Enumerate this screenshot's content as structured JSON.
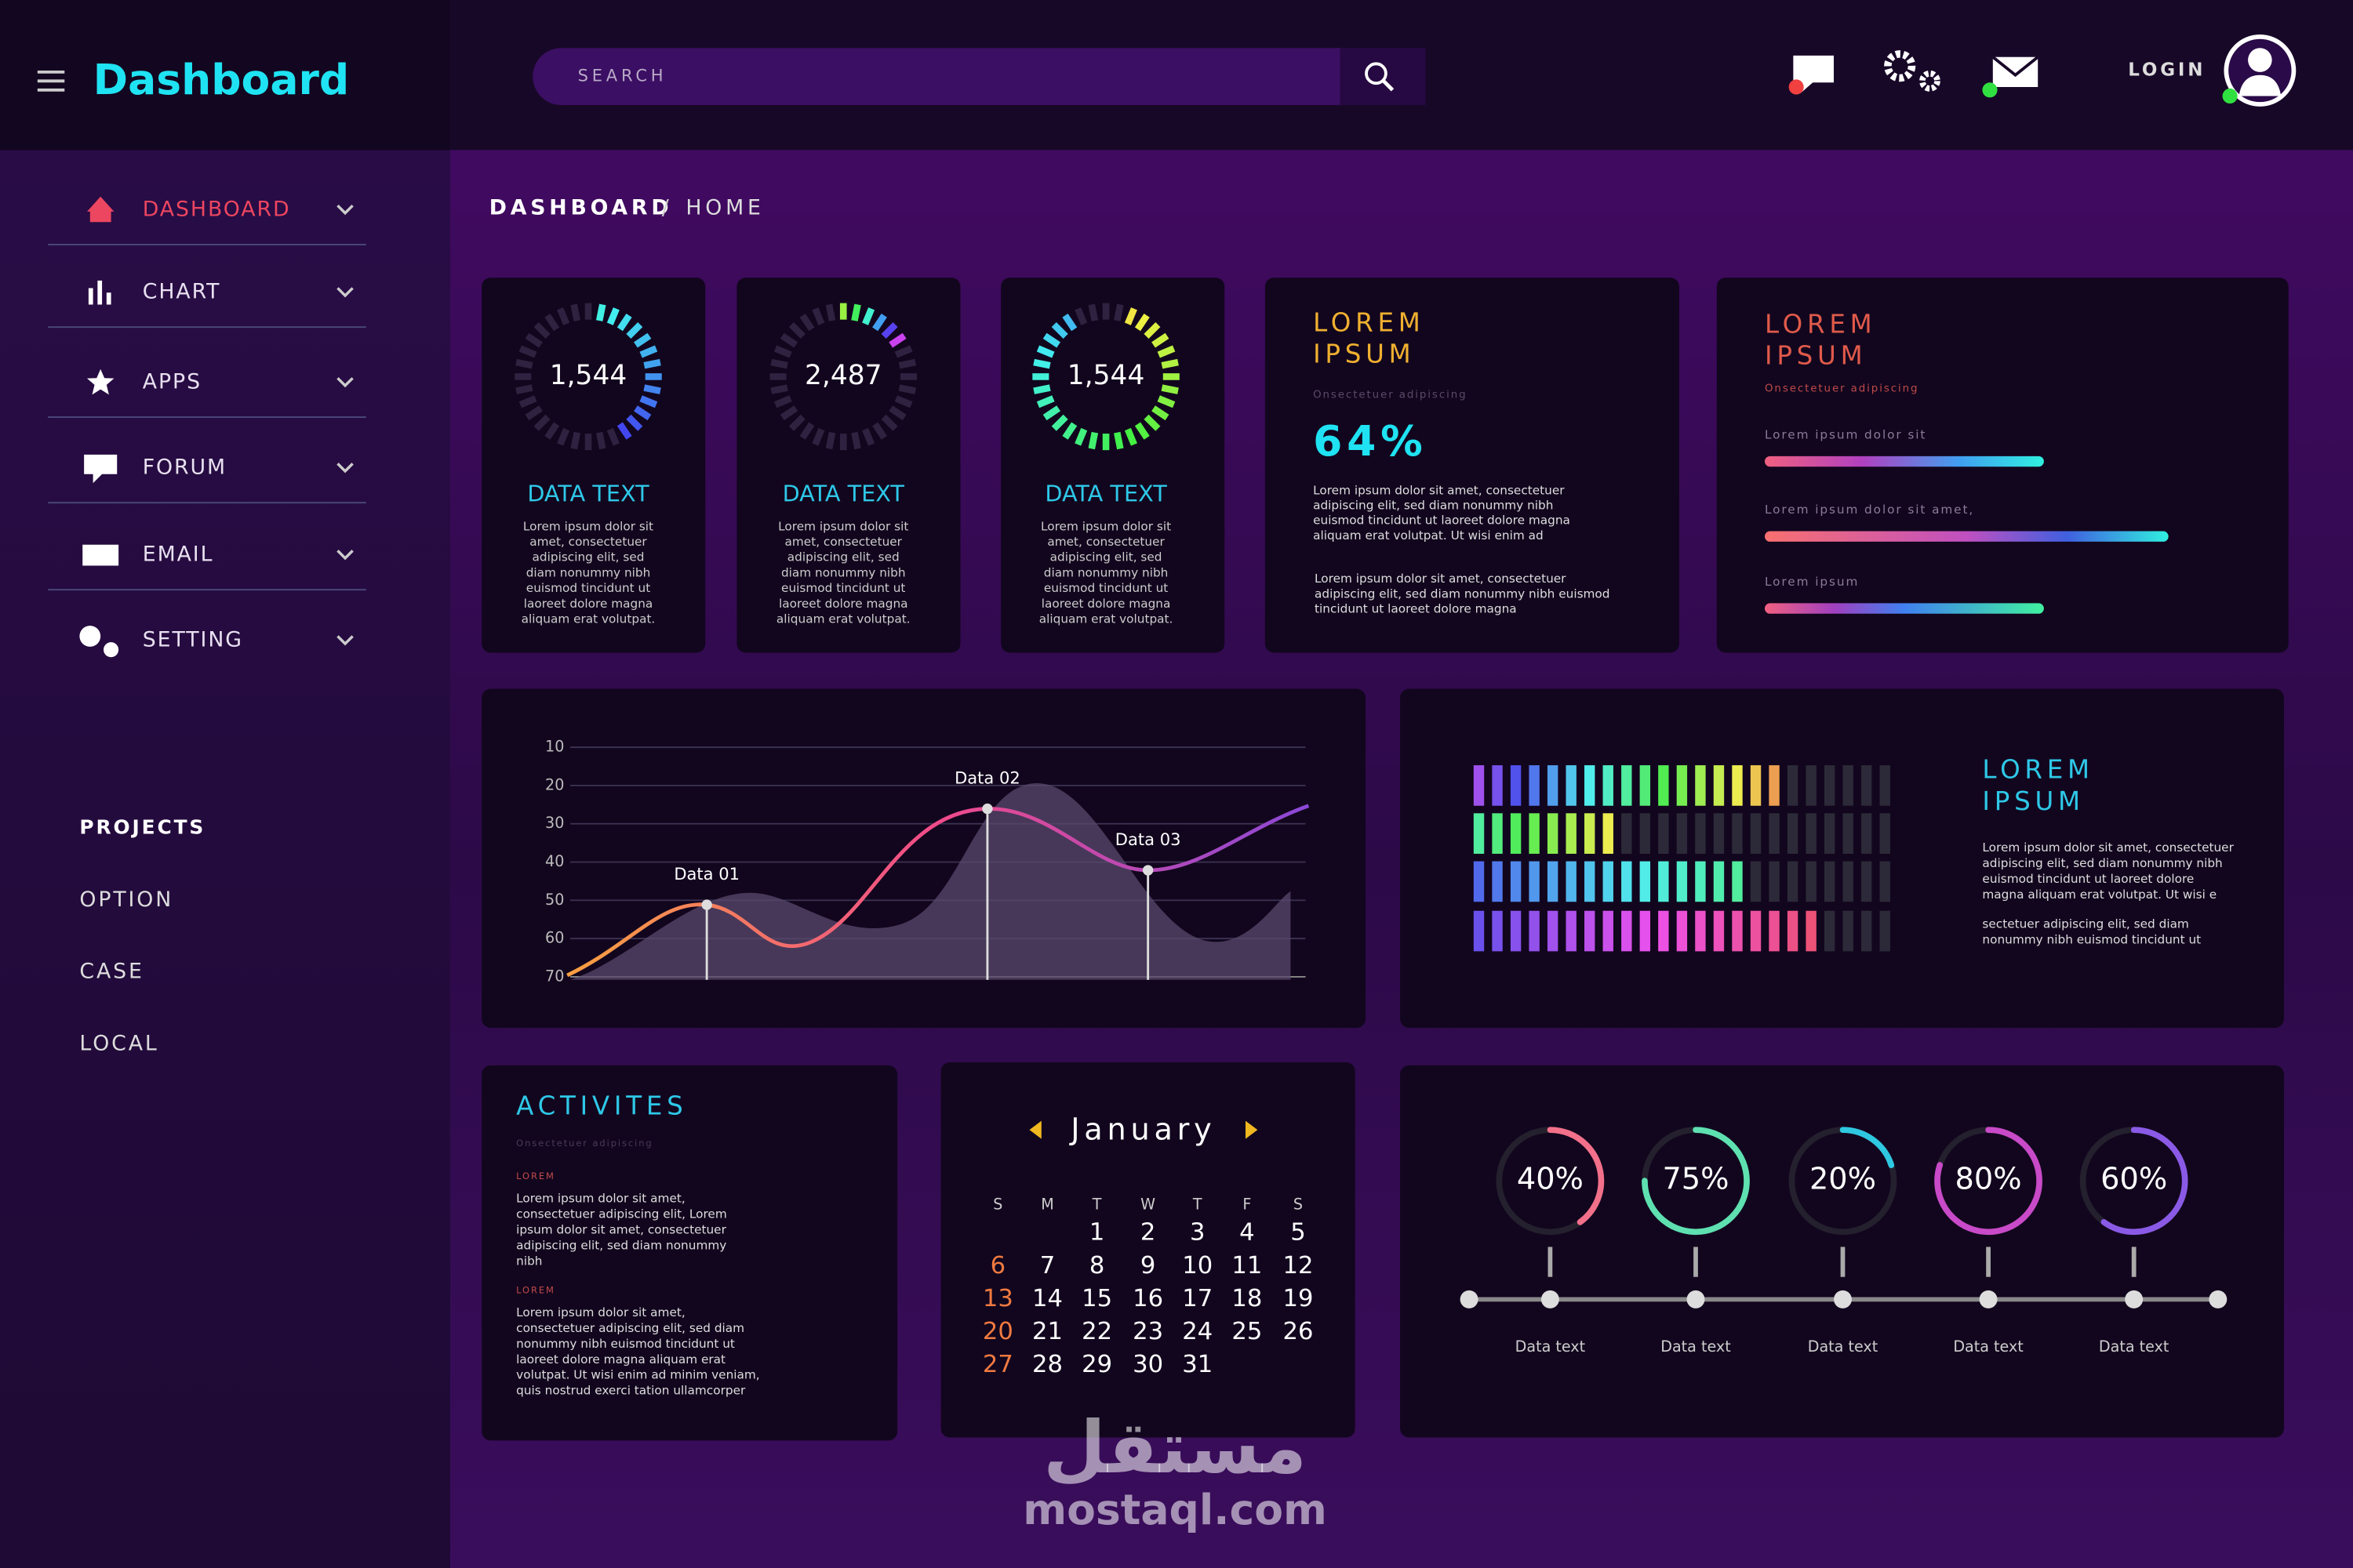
{
  "header": {
    "title": "Dashboard",
    "search_placeholder": "SEARCH",
    "login": "LOGIN"
  },
  "sidebar": {
    "menu": [
      "DASHBOARD",
      "CHART",
      "APPS",
      "FORUM",
      "EMAIL",
      "SETTING"
    ],
    "projects_title": "PROJECTS",
    "projects": [
      "OPTION",
      "CASE",
      "LOCAL"
    ]
  },
  "breadcrumb": {
    "section": "DASHBOARD",
    "separator": "/",
    "page": "HOME"
  },
  "stat_cards": [
    {
      "value": "1,544",
      "label": "DATA TEXT",
      "lines": [
        "Lorem ipsum dolor sit",
        "amet, consectetuer",
        "adipiscing elit, sed",
        "diam nonummy nibh",
        "euismod tincidunt ut",
        "laoreet dolore magna",
        "aliquam erat volutpat."
      ]
    },
    {
      "value": "2,487",
      "label": "DATA TEXT",
      "lines": [
        "Lorem ipsum dolor sit",
        "amet, consectetuer",
        "adipiscing elit, sed",
        "diam nonummy nibh",
        "euismod tincidunt ut",
        "laoreet dolore magna",
        "aliquam erat volutpat."
      ]
    },
    {
      "value": "1,544",
      "label": "DATA TEXT",
      "lines": [
        "Lorem ipsum dolor sit",
        "amet, consectetuer",
        "adipiscing elit, sed",
        "diam nonummy nibh",
        "euismod tincidunt ut",
        "laoreet dolore magna",
        "aliquam erat volutpat."
      ]
    }
  ],
  "percent_card": {
    "title": [
      "LOREM",
      "IPSUM"
    ],
    "subtitle": "Onsectetuer adipiscing",
    "value": "64%",
    "paragraph_1": [
      "Lorem ipsum dolor sit amet, consectetuer",
      "adipiscing elit, sed diam nonummy nibh",
      "euismod tincidunt ut laoreet dolore magna",
      "aliquam erat volutpat. Ut wisi enim ad"
    ],
    "paragraph_2": [
      "Lorem ipsum dolor sit amet, consectetuer",
      "adipiscing elit, sed diam nonummy nibh euismod",
      "tincidunt ut laoreet dolore magna"
    ]
  },
  "bars_card": {
    "title": [
      "LOREM",
      "IPSUM"
    ],
    "subtitle": "Onsectetuer adipiscing",
    "bar_labels": [
      "Lorem ipsum dolor sit",
      "Lorem ipsum dolor sit amet,",
      "Lorem ipsum"
    ]
  },
  "line_chart": {
    "yticks": [
      10,
      20,
      30,
      40,
      50,
      60,
      70
    ],
    "annotations": [
      "Data 01",
      "Data 02",
      "Data 03"
    ]
  },
  "levels_card": {
    "levels": [
      17,
      8,
      15,
      19
    ],
    "title": [
      "LOREM",
      "IPSUM"
    ],
    "paragraph_1": [
      "Lorem ipsum dolor sit amet, consectetuer",
      "adipiscing elit, sed diam nonummy nibh",
      "euismod tincidunt ut laoreet dolore",
      "magna aliquam erat volutpat. Ut wisi e"
    ],
    "paragraph_2": [
      "sectetuer adipiscing elit, sed diam",
      "nonummy nibh euismod tincidunt ut"
    ]
  },
  "activities": {
    "title": "ACTIVITES",
    "subtitle": "Onsectetuer adipiscing",
    "blocks": [
      {
        "heading": "LOREM",
        "lines": [
          "Lorem ipsum dolor sit amet,",
          "consectetuer adipiscing elit, Lorem",
          "ipsum dolor sit amet, consectetuer",
          "adipiscing elit, sed diam nonummy",
          "nibh"
        ]
      },
      {
        "heading": "LOREM",
        "lines": [
          "Lorem ipsum dolor sit amet,",
          "consectetuer adipiscing elit, sed diam",
          "nonummy nibh euismod tincidunt ut",
          "laoreet dolore magna aliquam erat",
          "volutpat. Ut wisi enim ad minim veniam,",
          "quis nostrud exerci tation ullamcorper"
        ]
      }
    ]
  },
  "calendar": {
    "month": "January",
    "weekdays": [
      "S",
      "M",
      "T",
      "W",
      "T",
      "F",
      "S"
    ],
    "days": [
      1,
      2,
      3,
      4,
      5,
      6,
      7,
      8,
      9,
      10,
      11,
      12,
      13,
      14,
      15,
      16,
      17,
      18,
      19,
      20,
      21,
      22,
      23,
      24,
      25,
      26,
      27,
      28,
      29,
      30,
      31
    ]
  },
  "progress": {
    "items": [
      {
        "value": 40,
        "label": "40%",
        "caption": "Data text",
        "color": "#f2708a"
      },
      {
        "value": 75,
        "label": "75%",
        "caption": "Data text",
        "color": "#5ee0b0"
      },
      {
        "value": 20,
        "label": "20%",
        "caption": "Data text",
        "color": "#2ec8e0"
      },
      {
        "value": 80,
        "label": "80%",
        "caption": "Data text",
        "color": "#c84ac8"
      },
      {
        "value": 60,
        "label": "60%",
        "caption": "Data text",
        "color": "#8a5ae6"
      }
    ]
  },
  "watermark": {
    "arabic": "مستقل",
    "latin": "mostaql.com"
  }
}
